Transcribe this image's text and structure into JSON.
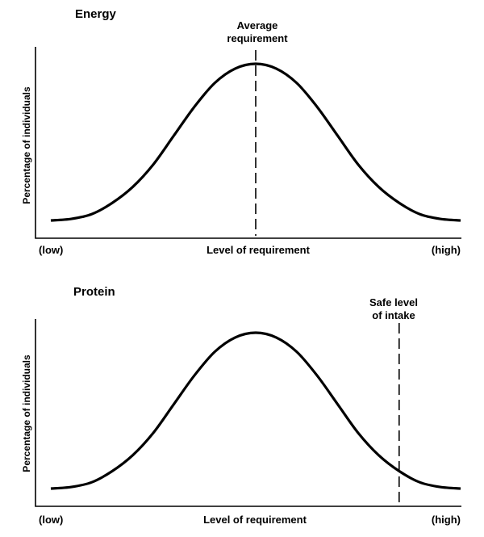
{
  "chart_data": [
    {
      "type": "line",
      "title": "Energy",
      "ylabel": "Percentage of individuals",
      "xlabel": "Level of requirement",
      "x_low_label": "(low)",
      "x_high_label": "(high)",
      "xlim": [
        0,
        1
      ],
      "ylim": [
        0,
        1
      ],
      "series": [
        {
          "x": [
            0,
            0.05,
            0.1,
            0.15,
            0.2,
            0.25,
            0.3,
            0.35,
            0.4,
            0.45,
            0.5,
            0.55,
            0.6,
            0.65,
            0.7,
            0.75,
            0.8,
            0.85,
            0.9,
            0.95,
            1
          ],
          "values": [
            0.02,
            0.03,
            0.06,
            0.13,
            0.23,
            0.37,
            0.55,
            0.73,
            0.88,
            0.97,
            1.0,
            0.97,
            0.88,
            0.73,
            0.55,
            0.37,
            0.23,
            0.13,
            0.06,
            0.03,
            0.02
          ]
        }
      ],
      "marker": {
        "label_line1": "Average",
        "label_line2": "requirement",
        "x": 0.5
      }
    },
    {
      "type": "line",
      "title": "Protein",
      "ylabel": "Percentage of individuals",
      "xlabel": "Level of requirement",
      "x_low_label": "(low)",
      "x_high_label": "(high)",
      "xlim": [
        0,
        1
      ],
      "ylim": [
        0,
        1
      ],
      "series": [
        {
          "x": [
            0,
            0.05,
            0.1,
            0.15,
            0.2,
            0.25,
            0.3,
            0.35,
            0.4,
            0.45,
            0.5,
            0.55,
            0.6,
            0.65,
            0.7,
            0.75,
            0.8,
            0.85,
            0.9,
            0.95,
            1
          ],
          "values": [
            0.02,
            0.03,
            0.06,
            0.13,
            0.23,
            0.37,
            0.55,
            0.73,
            0.88,
            0.97,
            1.0,
            0.97,
            0.88,
            0.73,
            0.55,
            0.37,
            0.23,
            0.13,
            0.06,
            0.03,
            0.02
          ]
        }
      ],
      "marker": {
        "label_line1": "Safe level",
        "label_line2": "of intake",
        "x": 0.85
      }
    }
  ]
}
